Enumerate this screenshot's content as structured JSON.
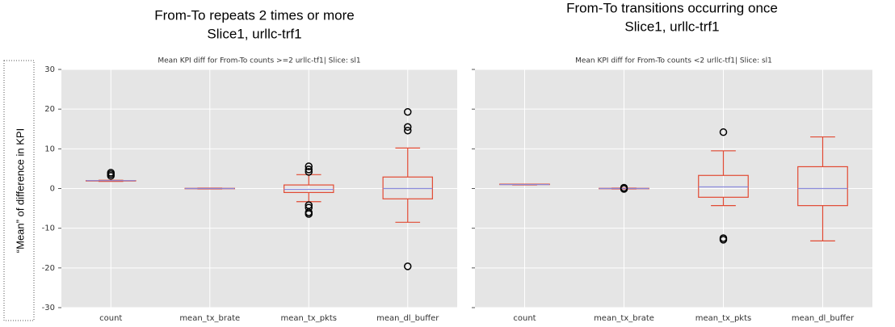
{
  "chart_data": [
    {
      "type": "box",
      "heading": [
        "From-To repeats 2 times or more",
        "Slice1, urllc-trf1"
      ],
      "title": "Mean KPI diff for From-To counts >=2  urllc-tf1| Slice: sl1",
      "ylabel": "“Mean” of difference in KPI",
      "categories": [
        "count",
        "mean_tx_brate",
        "mean_tx_pkts",
        "mean_dl_buffer"
      ],
      "boxes": [
        {
          "whislo": 1.8,
          "q1": 1.9,
          "med": 2.0,
          "q3": 2.0,
          "whishi": 2.1,
          "fliers": [
            3.2,
            3.6,
            4.0
          ]
        },
        {
          "whislo": -0.1,
          "q1": -0.05,
          "med": 0,
          "q3": 0.05,
          "whishi": 0.1,
          "fliers": []
        },
        {
          "whislo": -3.3,
          "q1": -1.0,
          "med": -0.2,
          "q3": 0.9,
          "whishi": 3.5,
          "fliers": [
            4.2,
            4.8,
            5.6,
            -4.2,
            -4.8,
            -6.0,
            -6.4
          ]
        },
        {
          "whislo": -8.5,
          "q1": -2.6,
          "med": 0,
          "q3": 2.9,
          "whishi": 10.2,
          "fliers": [
            14.6,
            15.5,
            19.3,
            -19.6
          ]
        }
      ],
      "box_color": "#e24a33",
      "median_color": "#8b8bdc",
      "ylim": [
        -30,
        30
      ],
      "yticks": [
        -30,
        -20,
        -10,
        0,
        10,
        20,
        30
      ],
      "grid": true,
      "show_ytick_labels": true
    },
    {
      "type": "box",
      "heading": [
        "From-To transitions occurring once",
        "Slice1, urllc-trf1"
      ],
      "title": "Mean KPI diff for From-To counts <2  urllc-tf1| Slice: sl1",
      "categories": [
        "count",
        "mean_tx_brate",
        "mean_tx_pkts",
        "mean_dl_buffer"
      ],
      "boxes": [
        {
          "whislo": 0.9,
          "q1": 1.0,
          "med": 1.0,
          "q3": 1.1,
          "whishi": 1.1,
          "fliers": []
        },
        {
          "whislo": -0.1,
          "q1": -0.05,
          "med": 0,
          "q3": 0.05,
          "whishi": 0.1,
          "fliers": [
            0.2,
            -0.1
          ]
        },
        {
          "whislo": -4.3,
          "q1": -2.2,
          "med": 0.4,
          "q3": 3.3,
          "whishi": 9.5,
          "fliers": [
            14.2,
            -12.5,
            -12.9
          ]
        },
        {
          "whislo": -13.2,
          "q1": -4.3,
          "med": 0,
          "q3": 5.5,
          "whishi": 13.0,
          "fliers": []
        }
      ],
      "box_color": "#e24a33",
      "median_color": "#8b8bdc",
      "ylim": [
        -30,
        30
      ],
      "yticks": [
        -30,
        -20,
        -10,
        0,
        10,
        20,
        30
      ],
      "grid": true,
      "show_ytick_labels": false
    }
  ]
}
